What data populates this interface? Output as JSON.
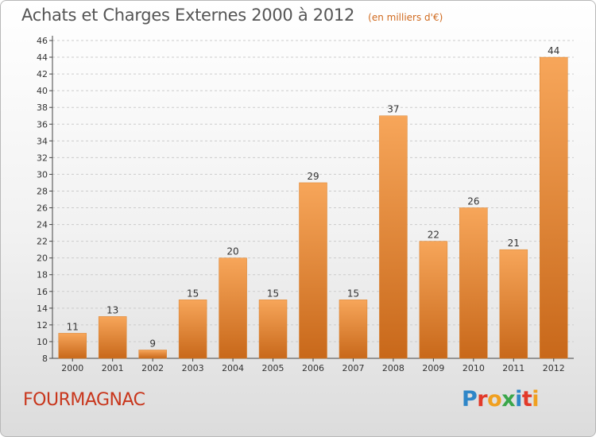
{
  "header": {
    "title": "Achats et Charges Externes 2000 à 2012",
    "unit": "(en milliers d'€)"
  },
  "footer": {
    "commune": "FOURMAGNAC",
    "logo_letters": [
      "P",
      "r",
      "o",
      "x",
      "i",
      "t",
      "i"
    ],
    "logo_colors": [
      "#2e86c8",
      "#e23a2a",
      "#f0a020",
      "#3aa64a",
      "#2e86c8",
      "#e23a2a",
      "#f0a020"
    ]
  },
  "colors": {
    "bar_light": "#f7a65a",
    "bar_dark": "#c8681a",
    "grid": "#cccccc",
    "axis": "#444444",
    "label": "#333333"
  },
  "chart_data": {
    "type": "bar",
    "title": "Achats et Charges Externes 2000 à 2012",
    "xlabel": "",
    "ylabel": "",
    "categories": [
      "2000",
      "2001",
      "2002",
      "2003",
      "2004",
      "2005",
      "2006",
      "2007",
      "2008",
      "2009",
      "2010",
      "2011",
      "2012"
    ],
    "values": [
      11,
      13,
      9,
      15,
      20,
      15,
      29,
      15,
      37,
      22,
      26,
      21,
      44
    ],
    "ylim": [
      8,
      46
    ],
    "ytick_step": 2,
    "grid": true,
    "data_labels": true
  }
}
